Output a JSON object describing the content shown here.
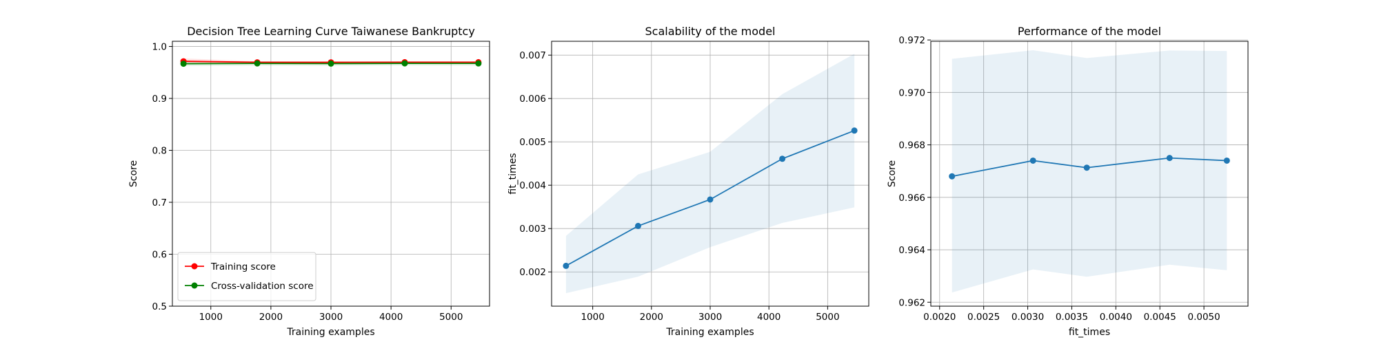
{
  "chart_data": [
    {
      "type": "line",
      "title": "Decision Tree Learning Curve Taiwanese Bankruptcy",
      "xlabel": "Training examples",
      "ylabel": "Score",
      "xlim": [
        360,
        5640
      ],
      "ylim": [
        0.5,
        1.01
      ],
      "xticks": [
        1000,
        2000,
        3000,
        4000,
        5000
      ],
      "xtick_labels": [
        "1000",
        "2000",
        "3000",
        "4000",
        "5000"
      ],
      "yticks": [
        0.5,
        0.6,
        0.7,
        0.8,
        0.9,
        1.0
      ],
      "ytick_labels": [
        "0.5",
        "0.6",
        "0.7",
        "0.8",
        "0.9",
        "1.0"
      ],
      "grid": true,
      "legend": "lower left",
      "x": [
        545,
        1773,
        3000,
        4228,
        5455
      ],
      "series": [
        {
          "name": "Training score",
          "color": "#ff0000",
          "band_color": "#ff0000",
          "values": [
            0.9715,
            0.9695,
            0.9695,
            0.9697,
            0.9697
          ],
          "band_low": [
            0.9665,
            0.9675,
            0.968,
            0.9685,
            0.9685
          ],
          "band_high": [
            0.977,
            0.9715,
            0.971,
            0.971,
            0.971
          ]
        },
        {
          "name": "Cross-validation score",
          "color": "#008000",
          "band_color": "#008000",
          "values": [
            0.9668,
            0.9674,
            0.9671,
            0.9675,
            0.9674
          ],
          "band_low": [
            0.9624,
            0.9632,
            0.963,
            0.9634,
            0.9632
          ],
          "band_high": [
            0.9713,
            0.9716,
            0.9713,
            0.9716,
            0.9716
          ]
        }
      ]
    },
    {
      "type": "line",
      "title": "Scalability of the model",
      "xlabel": "Training examples",
      "ylabel": "fit_times",
      "xlim": [
        300,
        5700
      ],
      "ylim": [
        0.00121,
        0.00732
      ],
      "xticks": [
        1000,
        2000,
        3000,
        4000,
        5000
      ],
      "xtick_labels": [
        "1000",
        "2000",
        "3000",
        "4000",
        "5000"
      ],
      "yticks": [
        0.002,
        0.003,
        0.004,
        0.005,
        0.006,
        0.007
      ],
      "ytick_labels": [
        "0.002",
        "0.003",
        "0.004",
        "0.005",
        "0.006",
        "0.007"
      ],
      "grid": true,
      "x": [
        545,
        1773,
        3000,
        4228,
        5455
      ],
      "series": [
        {
          "color": "#1f77b4",
          "band_color": "#1f77b4",
          "values": [
            0.00214,
            0.00306,
            0.00367,
            0.00461,
            0.00526
          ],
          "band_low": [
            0.00151,
            0.00189,
            0.00257,
            0.00313,
            0.00349
          ],
          "band_high": [
            0.00283,
            0.00425,
            0.00477,
            0.0061,
            0.00703
          ]
        }
      ]
    },
    {
      "type": "line",
      "title": "Performance of the model",
      "xlabel": "fit_times",
      "ylabel": "Score",
      "xlim": [
        0.0019,
        0.0055
      ],
      "ylim": [
        0.96185,
        0.97195
      ],
      "xticks": [
        0.002,
        0.0025,
        0.003,
        0.0035,
        0.004,
        0.0045,
        0.005
      ],
      "xtick_labels": [
        "0.0020",
        "0.0025",
        "0.0030",
        "0.0035",
        "0.0040",
        "0.0045",
        "0.0050"
      ],
      "yticks": [
        0.962,
        0.964,
        0.966,
        0.968,
        0.97,
        0.972
      ],
      "ytick_labels": [
        "0.962",
        "0.964",
        "0.966",
        "0.968",
        "0.970",
        "0.972"
      ],
      "grid": true,
      "x": [
        0.00214,
        0.00306,
        0.00367,
        0.00461,
        0.00526
      ],
      "series": [
        {
          "color": "#1f77b4",
          "band_color": "#1f77b4",
          "values": [
            0.9668,
            0.9674,
            0.96713,
            0.9675,
            0.9674
          ],
          "band_low": [
            0.96237,
            0.96325,
            0.96297,
            0.96343,
            0.96322
          ],
          "band_high": [
            0.97128,
            0.97161,
            0.97131,
            0.9716,
            0.97158
          ]
        }
      ]
    }
  ]
}
